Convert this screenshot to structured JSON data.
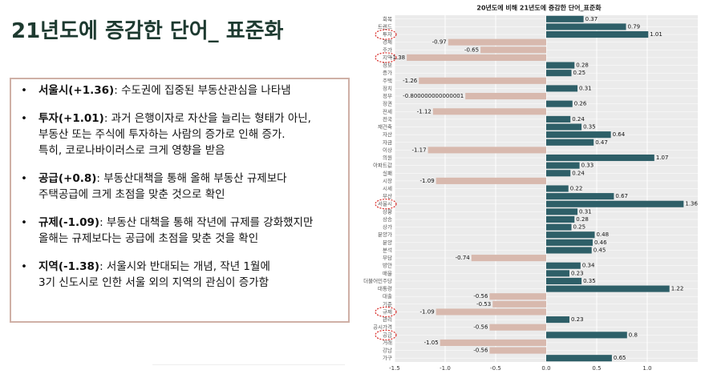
{
  "header": {
    "title": "21년도에 증감한 단어_ 표준화"
  },
  "bullets": [
    {
      "bold": "서울시(+1.36)",
      "lines": [
        ": 수도권에 집중된 부동산관심을 나타냄"
      ]
    },
    {
      "bold": "투자(+1.01)",
      "lines": [
        ": 과거 은행이자로 자산을 늘리는 형태가 아닌,",
        "부동산 또는 주식에 투자하는 사람의 증가로 인해 증가.",
        "특히, 코로나바이러스로 크게 영향을 받음"
      ]
    },
    {
      "bold": "공급(+0.8)",
      "lines": [
        ": 부동산대책을 통해 올해 부동산 규제보다",
        "주택공급에 크게 초점을 맞춘 것으로 확인"
      ]
    },
    {
      "bold": "규제(-1.09)",
      "lines": [
        ": 부동산 대책을 통해 작년에 규제를 강화했지만",
        "올해는 규제보다는 공급에 초점을 맞춘 것을 확인"
      ]
    },
    {
      "bold": "지역(-1.38)",
      "lines": [
        ": 서울시와 반대되는 개념, 작년 1월에",
        "3기 신도시로 인한 서울 외의 지역의 관심이 증가함"
      ]
    }
  ],
  "chart_data": {
    "type": "barh",
    "title": "20년도에 비해 21년도에 증감한 단어_표준화",
    "categories": [
      "회복",
      "트렌드",
      "투자",
      "경제",
      "주가",
      "지역",
      "정보",
      "증가",
      "주택",
      "정치",
      "정부",
      "정권",
      "전세",
      "전국",
      "재건축",
      "자산",
      "자금",
      "이상",
      "의원",
      "아파트값",
      "실패",
      "시장",
      "시세",
      "부산",
      "서울시",
      "상황",
      "상승",
      "상가",
      "분양가",
      "분양",
      "분석",
      "부담",
      "방안",
      "매물",
      "더불어민주당",
      "대통령",
      "대출",
      "기준",
      "규제",
      "관리",
      "공시가격",
      "공급",
      "거래",
      "강남",
      "가구"
    ],
    "values": [
      0.37,
      0.79,
      1.01,
      -0.97,
      -0.65,
      -1.38,
      0.28,
      0.25,
      -1.26,
      0.31,
      -0.800000000000001,
      0.26,
      -1.12,
      0.24,
      0.35,
      0.64,
      0.47,
      -1.17,
      1.07,
      0.33,
      0.24,
      -1.09,
      0.22,
      0.67,
      1.36,
      0.31,
      0.28,
      0.25,
      0.48,
      0.46,
      0.45,
      -0.74,
      0.34,
      0.23,
      0.35,
      1.22,
      -0.56,
      -0.53,
      -1.09,
      0.23,
      -0.56,
      0.8,
      -1.05,
      -0.56,
      0.65
    ],
    "positive_color": "#2e5f68",
    "negative_color": "#d8b9ae",
    "highlight_color": "#d9302c",
    "highlighted": [
      2,
      5,
      24,
      38,
      41
    ],
    "xlim": [
      -1.5,
      1.5
    ],
    "xticks": [
      -1.5,
      {
        "value": -1,
        "label": "-1.0"
      },
      -0.5,
      {
        "value": 0,
        "label": "0.0"
      },
      0.5,
      {
        "value": 1,
        "label": "1.0"
      }
    ],
    "grid": true
  }
}
